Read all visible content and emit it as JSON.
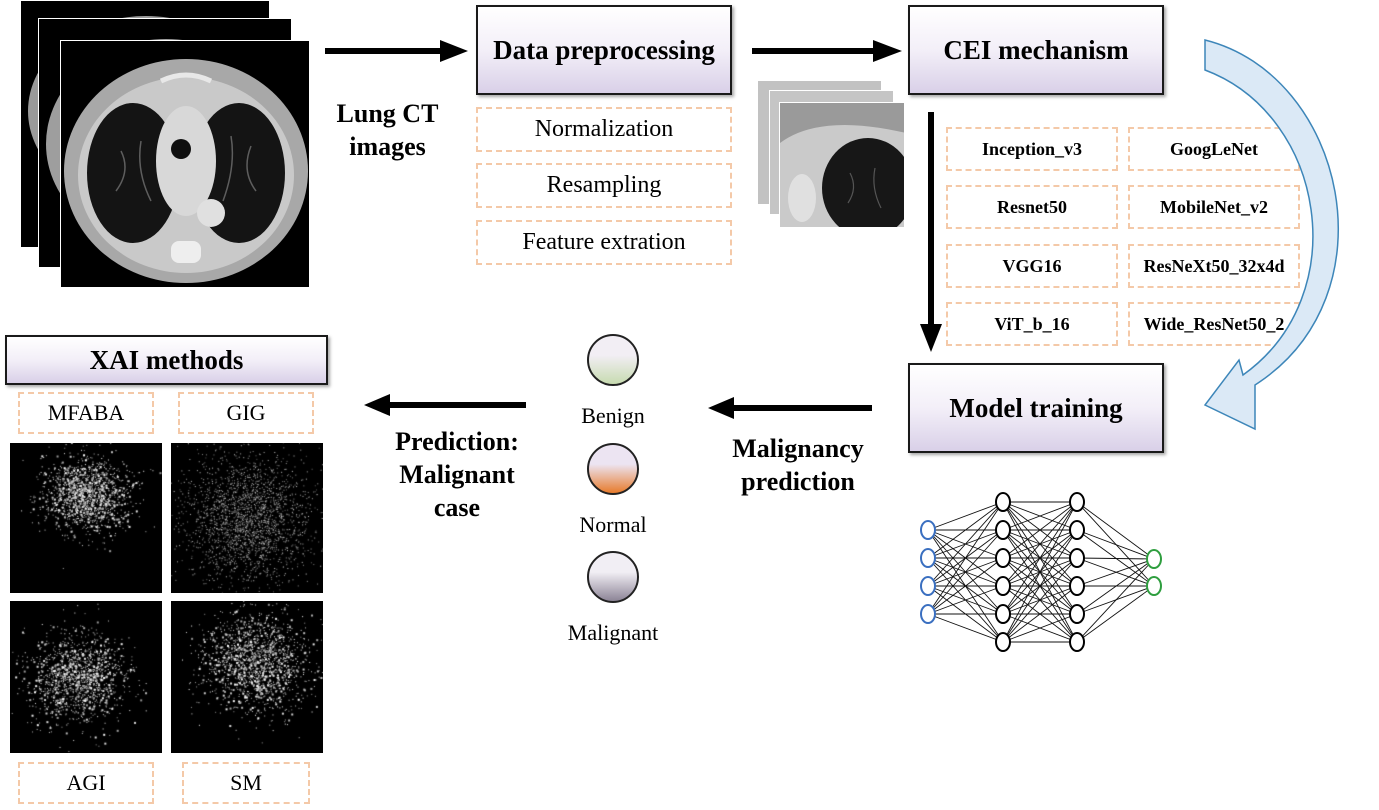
{
  "input": {
    "label_line1": "Lung CT",
    "label_line2": "images"
  },
  "preprocessing": {
    "title": "Data preprocessing",
    "steps": [
      "Normalization",
      "Resampling",
      "Feature extration"
    ]
  },
  "cei": {
    "title": "CEI mechanism",
    "models": [
      "Inception_v3",
      "GoogLeNet",
      "Resnet50",
      "MobileNet_v2",
      "VGG16",
      "ResNeXt50_32x4d",
      "ViT_b_16",
      "Wide_ResNet50_2"
    ]
  },
  "training": {
    "title": "Model training"
  },
  "prediction": {
    "label_line1": "Malignancy",
    "label_line2": "prediction"
  },
  "classes": [
    {
      "name": "Benign",
      "color_top": "#f2eef4",
      "color_bottom": "#c7dbb0"
    },
    {
      "name": "Normal",
      "color_top": "#ece4f2",
      "color_bottom": "#e77b2c"
    },
    {
      "name": "Malignant",
      "color_top": "#f1eef4",
      "color_bottom": "#8c8496"
    }
  ],
  "result": {
    "label_line1": "Prediction:",
    "label_line2": "Malignant",
    "label_line3": "case"
  },
  "xai": {
    "title": "XAI methods",
    "methods": [
      "MFABA",
      "GIG",
      "AGI",
      "SM"
    ]
  },
  "colors": {
    "box_border": "#1a1a1a",
    "dash_border": "#f4c9a8",
    "arrow_fill": "#dbe9f6",
    "arrow_stroke": "#3d86b9",
    "nn_input": "#3a6fc0",
    "nn_output": "#2e9e3e"
  }
}
